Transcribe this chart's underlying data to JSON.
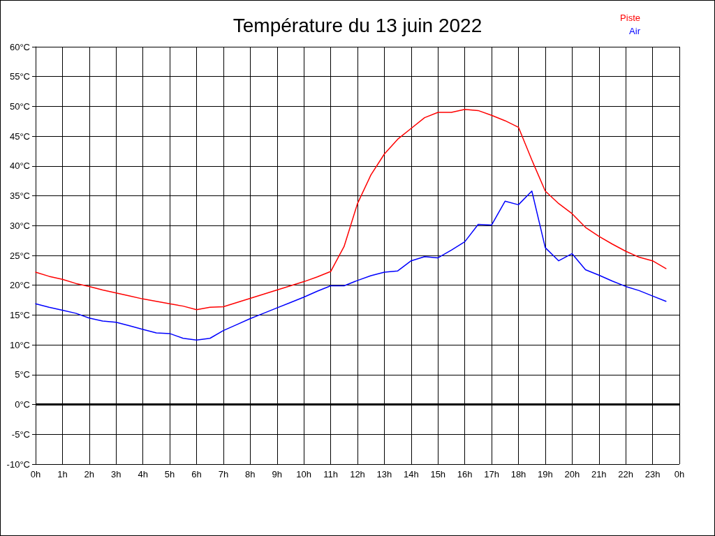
{
  "chart_data": {
    "type": "line",
    "title": "Température du 13 juin 2022",
    "x": [
      "2022-06-13T00:00",
      "2022-06-13T00:30",
      "2022-06-13T01:00",
      "2022-06-13T01:30",
      "2022-06-13T02:00",
      "2022-06-13T02:30",
      "2022-06-13T03:00",
      "2022-06-13T03:30",
      "2022-06-13T04:00",
      "2022-06-13T04:30",
      "2022-06-13T05:00",
      "2022-06-13T05:30",
      "2022-06-13T06:00",
      "2022-06-13T06:30",
      "2022-06-13T07:00",
      "2022-06-13T07:30",
      "2022-06-13T08:00",
      "2022-06-13T08:30",
      "2022-06-13T09:00",
      "2022-06-13T09:30",
      "2022-06-13T10:00",
      "2022-06-13T10:30",
      "2022-06-13T11:00",
      "2022-06-13T11:30",
      "2022-06-13T12:00",
      "2022-06-13T12:30",
      "2022-06-13T13:00",
      "2022-06-13T13:30",
      "2022-06-13T14:00",
      "2022-06-13T14:30",
      "2022-06-13T15:00",
      "2022-06-13T15:30",
      "2022-06-13T16:00",
      "2022-06-13T16:30",
      "2022-06-13T17:00",
      "2022-06-13T17:30",
      "2022-06-13T18:00",
      "2022-06-13T18:30",
      "2022-06-13T19:00",
      "2022-06-13T19:30",
      "2022-06-13T20:00",
      "2022-06-13T20:30",
      "2022-06-13T21:00",
      "2022-06-13T21:30",
      "2022-06-13T22:00",
      "2022-06-13T22:30",
      "2022-06-13T23:00",
      "2022-06-13T23:30"
    ],
    "series": [
      {
        "name": "Piste",
        "color": "#ff0000",
        "values": [
          22.2,
          21.5,
          21,
          20.3,
          19.8,
          19.2,
          18.7,
          18.2,
          17.7,
          17.3,
          16.9,
          16.5,
          15.9,
          16.3,
          16.4,
          17.1,
          17.8,
          18.5,
          19.2,
          19.9,
          20.6,
          21.4,
          22.3,
          26.5,
          33.7,
          38.5,
          42,
          44.5,
          46.3,
          48.1,
          49,
          49,
          49.5,
          49.3,
          48.5,
          47.6,
          46.5,
          41,
          35.8,
          33.7,
          32,
          29.7,
          28.2,
          26.9,
          25.7,
          24.7,
          24.1,
          22.8
        ]
      },
      {
        "name": "Air",
        "color": "#0000ff",
        "values": [
          16.9,
          16.3,
          15.8,
          15.3,
          14.5,
          14,
          13.8,
          13.2,
          12.6,
          12,
          11.9,
          11.1,
          10.8,
          11.1,
          12.4,
          13.4,
          14.4,
          15.3,
          16.2,
          17.1,
          18,
          19,
          19.9,
          19.9,
          20.8,
          21.6,
          22.2,
          22.4,
          24.1,
          24.8,
          24.6,
          25.9,
          27.3,
          30.2,
          30.1,
          34.1,
          33.5,
          35.8,
          26.3,
          24.1,
          25.3,
          22.6,
          21.7,
          20.7,
          19.8,
          19.1,
          18.2,
          17.3
        ]
      }
    ],
    "xlim": [
      "2022-06-13T00:00",
      "2022-06-14T00:00"
    ],
    "xticks": [
      {
        "value": "2022-06-13T00:00",
        "label": "0h"
      },
      {
        "value": "2022-06-13T01:00",
        "label": "1h"
      },
      {
        "value": "2022-06-13T02:00",
        "label": "2h"
      },
      {
        "value": "2022-06-13T03:00",
        "label": "3h"
      },
      {
        "value": "2022-06-13T04:00",
        "label": "4h"
      },
      {
        "value": "2022-06-13T05:00",
        "label": "5h"
      },
      {
        "value": "2022-06-13T06:00",
        "label": "6h"
      },
      {
        "value": "2022-06-13T07:00",
        "label": "7h"
      },
      {
        "value": "2022-06-13T08:00",
        "label": "8h"
      },
      {
        "value": "2022-06-13T09:00",
        "label": "9h"
      },
      {
        "value": "2022-06-13T10:00",
        "label": "10h"
      },
      {
        "value": "2022-06-13T11:00",
        "label": "11h"
      },
      {
        "value": "2022-06-13T12:00",
        "label": "12h"
      },
      {
        "value": "2022-06-13T13:00",
        "label": "13h"
      },
      {
        "value": "2022-06-13T14:00",
        "label": "14h"
      },
      {
        "value": "2022-06-13T15:00",
        "label": "15h"
      },
      {
        "value": "2022-06-13T16:00",
        "label": "16h"
      },
      {
        "value": "2022-06-13T17:00",
        "label": "17h"
      },
      {
        "value": "2022-06-13T18:00",
        "label": "18h"
      },
      {
        "value": "2022-06-13T19:00",
        "label": "19h"
      },
      {
        "value": "2022-06-13T20:00",
        "label": "20h"
      },
      {
        "value": "2022-06-13T21:00",
        "label": "21h"
      },
      {
        "value": "2022-06-13T22:00",
        "label": "22h"
      },
      {
        "value": "2022-06-13T23:00",
        "label": "23h"
      },
      {
        "value": "2022-06-14T00:00",
        "label": "0h"
      }
    ],
    "ylim": [
      -10,
      60
    ],
    "yticks": [
      {
        "value": -10,
        "label": "-10°C"
      },
      {
        "value": -5,
        "label": "-5°C"
      },
      {
        "value": 0,
        "label": "0°C"
      },
      {
        "value": 5,
        "label": "5°C"
      },
      {
        "value": 10,
        "label": "10°C"
      },
      {
        "value": 15,
        "label": "15°C"
      },
      {
        "value": 20,
        "label": "20°C"
      },
      {
        "value": 25,
        "label": "25°C"
      },
      {
        "value": 30,
        "label": "30°C"
      },
      {
        "value": 35,
        "label": "35°C"
      },
      {
        "value": 40,
        "label": "40°C"
      },
      {
        "value": 45,
        "label": "45°C"
      },
      {
        "value": 50,
        "label": "50°C"
      },
      {
        "value": 55,
        "label": "55°C"
      },
      {
        "value": 60,
        "label": "60°C"
      }
    ],
    "ref_lines": [
      {
        "axis": "y",
        "value": 0,
        "color": "#000000"
      }
    ],
    "grid": true,
    "legend": "top right",
    "marker": "none",
    "line_style": "solid"
  }
}
